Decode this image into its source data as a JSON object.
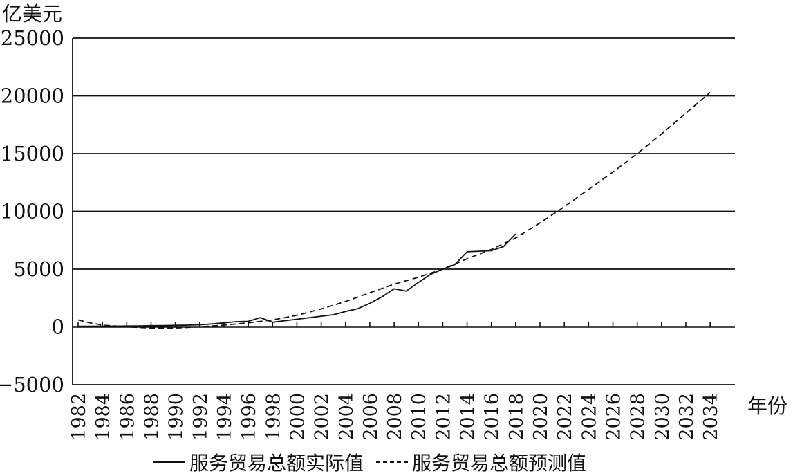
{
  "chart_data": {
    "type": "line",
    "title": "",
    "ylabel": "亿美元",
    "xlabel": "年份",
    "ylim": [
      -5000,
      25000
    ],
    "yticks": [
      "25000",
      "20000",
      "15000",
      "10000",
      "5000",
      "0",
      "−5000"
    ],
    "ytick_values": [
      25000,
      20000,
      15000,
      10000,
      5000,
      0,
      -5000
    ],
    "xlim": [
      1982,
      2035
    ],
    "xticks": [
      "1982",
      "1984",
      "1986",
      "1988",
      "1990",
      "1992",
      "1994",
      "1996",
      "1998",
      "2000",
      "2002",
      "2004",
      "2006",
      "2008",
      "2010",
      "2012",
      "2014",
      "2016",
      "2018",
      "2020",
      "2022",
      "2024",
      "2026",
      "2028",
      "2030",
      "2032",
      "2034"
    ],
    "xtick_values": [
      1982,
      1984,
      1986,
      1988,
      1990,
      1992,
      1994,
      1996,
      1998,
      2000,
      2002,
      2004,
      2006,
      2008,
      2010,
      2012,
      2014,
      2016,
      2018,
      2020,
      2022,
      2024,
      2026,
      2028,
      2030,
      2032,
      2034
    ],
    "grid": "horizontal",
    "series": [
      {
        "name": "服务贸易总额实际值",
        "style": "solid",
        "color": "#111111",
        "x": [
          1982,
          1983,
          1984,
          1985,
          1986,
          1987,
          1988,
          1989,
          1990,
          1991,
          1992,
          1993,
          1994,
          1995,
          1996,
          1997,
          1998,
          1999,
          2000,
          2001,
          2002,
          2003,
          2004,
          2005,
          2006,
          2007,
          2008,
          2009,
          2010,
          2011,
          2012,
          2013,
          2014,
          2015,
          2016,
          2017,
          2018
        ],
        "y": [
          50,
          50,
          60,
          60,
          70,
          80,
          100,
          110,
          130,
          150,
          180,
          250,
          350,
          450,
          480,
          800,
          400,
          530,
          660,
          790,
          920,
          1050,
          1330,
          1570,
          2040,
          2600,
          3300,
          3100,
          3850,
          4550,
          5000,
          5400,
          6500,
          6550,
          6600,
          6950,
          8050
        ]
      },
      {
        "name": "服务贸易总额预测值",
        "style": "dashed",
        "color": "#111111",
        "x": [
          1982,
          1983,
          1984,
          1986,
          1988,
          1990,
          1992,
          1994,
          1996,
          1998,
          2000,
          2002,
          2004,
          2006,
          2008,
          2010,
          2012,
          2014,
          2016,
          2018,
          2020,
          2022,
          2024,
          2026,
          2028,
          2030,
          2032,
          2034
        ],
        "y": [
          600,
          350,
          150,
          0,
          -100,
          -100,
          0,
          150,
          350,
          600,
          1000,
          1550,
          2200,
          2950,
          3700,
          4300,
          5000,
          5900,
          6700,
          7700,
          9000,
          10400,
          11900,
          13400,
          15000,
          16700,
          18500,
          20300
        ]
      }
    ]
  }
}
